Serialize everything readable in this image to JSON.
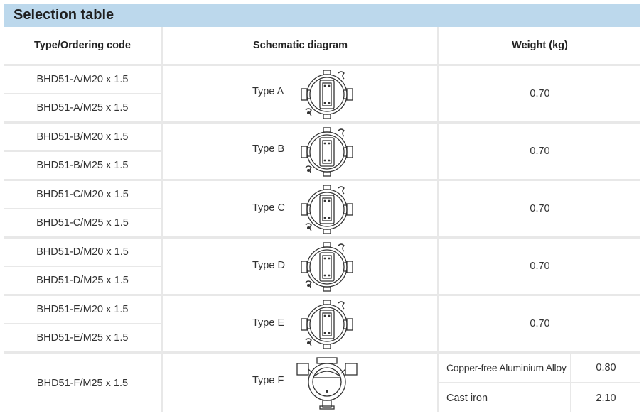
{
  "title": "Selection table",
  "headers": {
    "code": "Type/Ordering code",
    "diagram": "Schematic diagram",
    "weight": "Weight (kg)"
  },
  "rows": [
    {
      "codes": [
        "BHD51-A/M20 x 1.5",
        "BHD51-A/M25 x 1.5"
      ],
      "type": "Type A",
      "weight": "0.70"
    },
    {
      "codes": [
        "BHD51-B/M20 x 1.5",
        "BHD51-B/M25 x 1.5"
      ],
      "type": "Type B",
      "weight": "0.70"
    },
    {
      "codes": [
        "BHD51-C/M20 x 1.5",
        "BHD51-C/M25 x 1.5"
      ],
      "type": "Type C",
      "weight": "0.70"
    },
    {
      "codes": [
        "BHD51-D/M20 x 1.5",
        "BHD51-D/M25 x 1.5"
      ],
      "type": "Type D",
      "weight": "0.70"
    },
    {
      "codes": [
        "BHD51-E/M20 x 1.5",
        "BHD51-E/M25 x 1.5"
      ],
      "type": "Type E",
      "weight": "0.70"
    }
  ],
  "row_f": {
    "code": "BHD51-F/M25 x 1.5",
    "type": "Type F",
    "materials": [
      {
        "name": "Copper-free Aluminium Alloy",
        "weight": "0.80"
      },
      {
        "name": "Cast iron",
        "weight": "2.10"
      }
    ]
  }
}
